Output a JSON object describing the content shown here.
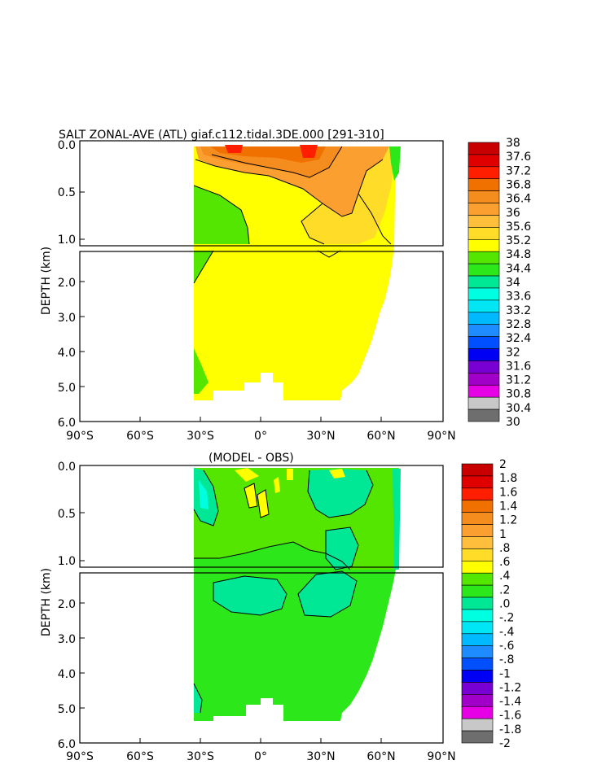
{
  "chart_data": [
    {
      "type": "heatmap",
      "title": "SALT ZONAL-AVE (ATL) giaf.c112.tidal.3DE.000 [291-310]",
      "xlabel": "",
      "ylabel": "DEPTH (km)",
      "x_ticks": [
        "90°S",
        "60°S",
        "30°S",
        "0°",
        "30°N",
        "60°N",
        "90°N"
      ],
      "y_ticks": [
        "0.0",
        "0.5",
        "1.0",
        "2.0",
        "3.0",
        "4.0",
        "5.0",
        "6.0"
      ],
      "xlim": [
        -90,
        90
      ],
      "ylim": [
        0,
        6
      ],
      "colorbar_levels": [
        "38",
        "37.6",
        "37.2",
        "36.8",
        "36.4",
        "36",
        "35.6",
        "35.2",
        "34.8",
        "34.4",
        "34",
        "33.6",
        "33.2",
        "32.8",
        "32.4",
        "32",
        "31.6",
        "31.2",
        "30.8",
        "30.4",
        "30"
      ],
      "colorbar_colors": [
        "#c80000",
        "#e10000",
        "#ff1e00",
        "#f07000",
        "#f58c1e",
        "#fba030",
        "#ffbe3c",
        "#ffdc28",
        "#ffff00",
        "#55e600",
        "#2ce81a",
        "#00e896",
        "#00ffe1",
        "#00e6f5",
        "#00b9ff",
        "#1e8cff",
        "#0050ff",
        "#0000f5",
        "#7800d2",
        "#a000c8",
        "#e600e6",
        "#c8c8c8",
        "#6e6e6e"
      ]
    },
    {
      "type": "heatmap",
      "title": "(MODEL - OBS)",
      "xlabel": "",
      "ylabel": "DEPTH (km)",
      "x_ticks": [
        "90°S",
        "60°S",
        "30°S",
        "0°",
        "30°N",
        "60°N",
        "90°N"
      ],
      "y_ticks": [
        "0.0",
        "0.5",
        "1.0",
        "2.0",
        "3.0",
        "4.0",
        "5.0",
        "6.0"
      ],
      "xlim": [
        -90,
        90
      ],
      "ylim": [
        0,
        6
      ],
      "colorbar_levels": [
        "2",
        "1.8",
        "1.6",
        "1.4",
        "1.2",
        "1",
        ".8",
        ".6",
        ".4",
        ".2",
        ".0",
        "-.2",
        "-.4",
        "-.6",
        "-.8",
        "-1",
        "-1.2",
        "-1.4",
        "-1.6",
        "-1.8",
        "-2"
      ],
      "colorbar_colors": [
        "#c80000",
        "#e10000",
        "#ff1e00",
        "#f07000",
        "#f58c1e",
        "#fba030",
        "#ffbe3c",
        "#ffdc28",
        "#ffff00",
        "#55e600",
        "#2ce81a",
        "#00e896",
        "#00ffe1",
        "#00e6f5",
        "#00b9ff",
        "#1e8cff",
        "#0050ff",
        "#0000f5",
        "#7800d2",
        "#a000c8",
        "#e600e6",
        "#c8c8c8",
        "#6e6e6e"
      ]
    }
  ]
}
